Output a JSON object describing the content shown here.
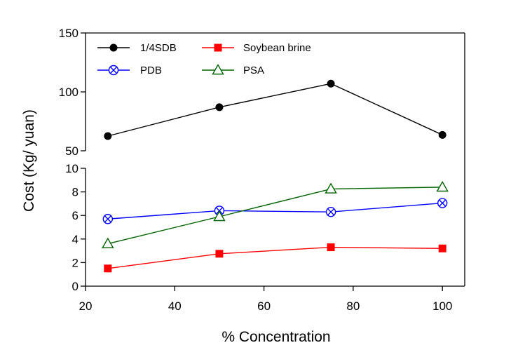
{
  "chart_data": {
    "type": "line",
    "xlabel": "% Concentration",
    "ylabel": "Cost (Kg/ yuan)",
    "x": [
      25,
      50,
      75,
      100
    ],
    "xlim": [
      20,
      105
    ],
    "xticks": [
      "20",
      "40",
      "60",
      "80",
      "100"
    ],
    "axis_break": true,
    "ylim_upper": [
      50,
      150
    ],
    "ylim_lower": [
      0,
      10
    ],
    "yticks_upper": [
      "50",
      "100",
      "150"
    ],
    "yticks_lower": [
      "0",
      "2",
      "4",
      "6",
      "8",
      "10"
    ],
    "grid": false,
    "legend_position": "top-left",
    "series": [
      {
        "name": "1/4SDB",
        "values": [
          62.5,
          87,
          107,
          63.5
        ],
        "color": "#000000",
        "marker": "filled-circle",
        "panel": "upper"
      },
      {
        "name": "Soybean brine",
        "values": [
          1.5,
          2.75,
          3.3,
          3.2
        ],
        "color": "#ff0000",
        "marker": "filled-square",
        "panel": "lower"
      },
      {
        "name": "PDB",
        "values": [
          5.7,
          6.4,
          6.3,
          7.05
        ],
        "color": "#0000ff",
        "marker": "circle-x",
        "panel": "lower"
      },
      {
        "name": "PSA",
        "values": [
          3.6,
          5.9,
          8.25,
          8.4
        ],
        "color": "#006400",
        "marker": "open-triangle",
        "panel": "lower"
      }
    ]
  }
}
